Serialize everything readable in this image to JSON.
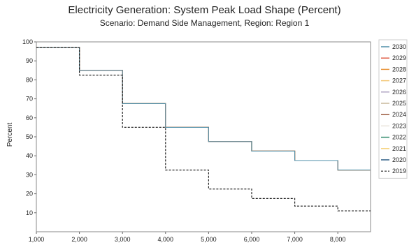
{
  "chart_data": {
    "type": "line",
    "title": "Electricity Generation: System Peak Load Shape (Percent)",
    "subtitle": "Scenario: Demand Side Management, Region: Region 1",
    "ylabel": "Percent",
    "xlabel": "",
    "xlim": [
      1000,
      8760
    ],
    "ylim": [
      0,
      100
    ],
    "x_ticks": [
      1000,
      2000,
      3000,
      4000,
      5000,
      6000,
      7000,
      8000
    ],
    "x_tick_labels": [
      "1,000",
      "2,000",
      "3,000",
      "4,000",
      "5,000",
      "6,000",
      "7,000",
      "8,000"
    ],
    "y_ticks": [
      10,
      20,
      30,
      40,
      50,
      60,
      70,
      80,
      90,
      100
    ],
    "y_tick_labels": [
      "10",
      "20",
      "30",
      "40",
      "50",
      "60",
      "70",
      "80",
      "90",
      "100"
    ],
    "legend_position": "right",
    "series": [
      {
        "name": "2030",
        "color": "#4f8fa8",
        "dash": false,
        "x": [
          1000,
          2000,
          3000,
          4000,
          5000,
          6000,
          7000,
          8000,
          8760
        ],
        "values": [
          97,
          85,
          67.5,
          55,
          47.5,
          42.5,
          37.5,
          32.5,
          32.5
        ]
      },
      {
        "name": "2029",
        "color": "#e0604a",
        "dash": false,
        "x": [
          1000,
          2000,
          3000,
          4000,
          5000,
          6000,
          7000,
          8000,
          8760
        ],
        "values": [
          97,
          85,
          67.5,
          55,
          47.5,
          42.5,
          37.5,
          32.5,
          32.5
        ]
      },
      {
        "name": "2028",
        "color": "#e9953a",
        "dash": false,
        "x": [
          1000,
          2000,
          3000,
          4000,
          5000,
          6000,
          7000,
          8000,
          8760
        ],
        "values": [
          97,
          85,
          67.5,
          55,
          47.5,
          42.5,
          37.5,
          32.5,
          32.5
        ]
      },
      {
        "name": "2027",
        "color": "#f3c776",
        "dash": false,
        "x": [
          1000,
          2000,
          3000,
          4000,
          5000,
          6000,
          7000,
          8000,
          8760
        ],
        "values": [
          97,
          85,
          67.5,
          55,
          47.5,
          42.5,
          37.5,
          32.5,
          32.5
        ]
      },
      {
        "name": "2026",
        "color": "#b0a6c4",
        "dash": false,
        "x": [
          1000,
          2000,
          3000,
          4000,
          5000,
          6000,
          7000,
          8000,
          8760
        ],
        "values": [
          97,
          85,
          67.5,
          55,
          47.5,
          42.5,
          37.5,
          32.5,
          32.5
        ]
      },
      {
        "name": "2025",
        "color": "#c8b89a",
        "dash": false,
        "x": [
          1000,
          2000,
          3000,
          4000,
          5000,
          6000,
          7000,
          8000,
          8760
        ],
        "values": [
          97,
          85,
          67.5,
          55,
          47.5,
          42.5,
          37.5,
          32.5,
          32.5
        ]
      },
      {
        "name": "2024",
        "color": "#9b5a3c",
        "dash": false,
        "x": [
          1000,
          2000,
          3000,
          4000,
          5000,
          6000,
          7000,
          8000,
          8760
        ],
        "values": [
          97,
          85,
          67.5,
          55,
          47.5,
          42.5,
          37.5,
          32.5,
          32.5
        ]
      },
      {
        "name": "2023",
        "color": "#e8e3dc",
        "dash": false,
        "x": [
          1000,
          2000,
          3000,
          4000,
          5000,
          6000,
          7000,
          8000,
          8760
        ],
        "values": [
          97,
          85,
          67.5,
          55,
          47.5,
          42.5,
          37.5,
          32.5,
          32.5
        ]
      },
      {
        "name": "2022",
        "color": "#2f8a6a",
        "dash": false,
        "x": [
          1000,
          2000,
          3000,
          4000,
          5000,
          6000,
          7000,
          8000,
          8760
        ],
        "values": [
          97,
          85,
          67.5,
          55,
          47.5,
          42.5,
          37.5,
          32.5,
          32.5
        ]
      },
      {
        "name": "2021",
        "color": "#f5d27a",
        "dash": false,
        "x": [
          1000,
          2000,
          3000,
          4000,
          5000,
          6000,
          7000,
          8000,
          8760
        ],
        "values": [
          97,
          85,
          67.5,
          55,
          47.5,
          42.5,
          37.5,
          32.5,
          32.5
        ]
      },
      {
        "name": "2020",
        "color": "#2c5d86",
        "dash": false,
        "x": [
          1000,
          2000,
          3000,
          4000,
          5000,
          6000,
          7000,
          8000,
          8760
        ],
        "values": [
          97,
          85,
          67.5,
          55,
          47.5,
          42.5,
          37.5,
          32.5,
          32.5
        ]
      },
      {
        "name": "2019",
        "color": "#222222",
        "dash": true,
        "x": [
          1000,
          2000,
          3000,
          4000,
          5000,
          6000,
          7000,
          8000,
          8760
        ],
        "values": [
          97,
          82.5,
          55,
          32.5,
          22.5,
          17.5,
          13.5,
          11,
          11
        ]
      }
    ]
  }
}
